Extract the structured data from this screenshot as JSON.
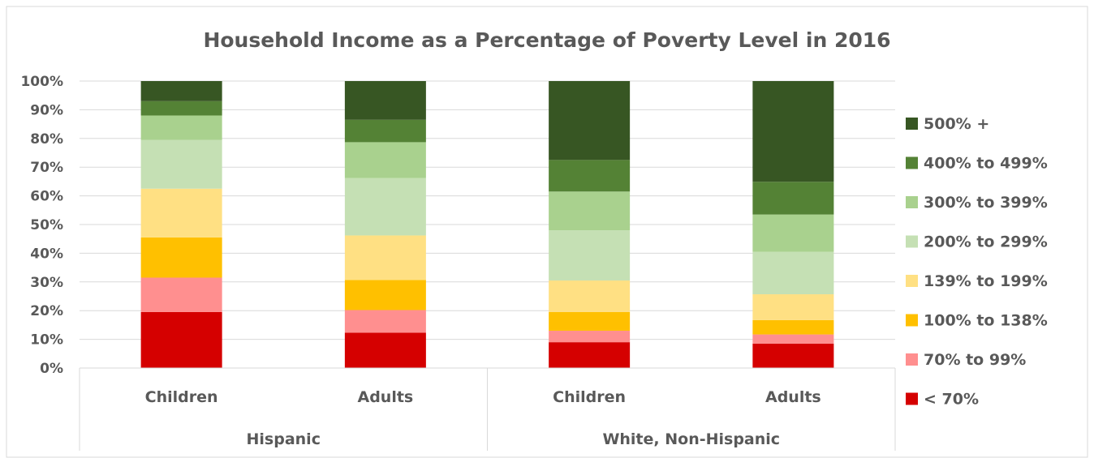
{
  "chart_data": {
    "type": "bar",
    "stacked": true,
    "percent_stacked": true,
    "title": "Household Income as a Percentage of Poverty Level in 2016",
    "xlabel": "",
    "ylabel": "",
    "ylim": [
      0,
      100
    ],
    "yticks": [
      "0%",
      "10%",
      "20%",
      "30%",
      "40%",
      "50%",
      "60%",
      "70%",
      "80%",
      "90%",
      "100%"
    ],
    "categories": [
      "Children",
      "Adults",
      "Children",
      "Adults"
    ],
    "groups": [
      {
        "label": "Hispanic",
        "span": [
          0,
          1
        ]
      },
      {
        "label": "White, Non-Hispanic",
        "span": [
          2,
          3
        ]
      }
    ],
    "grid": true,
    "legend": "right",
    "series": [
      {
        "name": "< 70%",
        "color": "#d50000",
        "values": [
          19.5,
          12.3,
          9.0,
          8.5
        ]
      },
      {
        "name": "70% to 99%",
        "color": "#ff8f8f",
        "values": [
          12.0,
          7.9,
          4.0,
          3.2
        ]
      },
      {
        "name": "100% to 138%",
        "color": "#ffc000",
        "values": [
          14.0,
          10.5,
          6.5,
          5.0
        ]
      },
      {
        "name": "139% to 199%",
        "color": "#ffe083",
        "values": [
          17.0,
          15.5,
          11.0,
          9.0
        ]
      },
      {
        "name": "200% to 299%",
        "color": "#c5e0b4",
        "values": [
          17.0,
          20.0,
          17.5,
          14.8
        ]
      },
      {
        "name": "300% to 399%",
        "color": "#a9d18e",
        "values": [
          8.5,
          12.5,
          13.5,
          13.0
        ]
      },
      {
        "name": "400% to 499%",
        "color": "#548235",
        "values": [
          5.0,
          7.8,
          11.0,
          11.4
        ]
      },
      {
        "name": "500% +",
        "color": "#375623",
        "values": [
          7.0,
          13.5,
          27.5,
          35.1
        ]
      }
    ]
  }
}
